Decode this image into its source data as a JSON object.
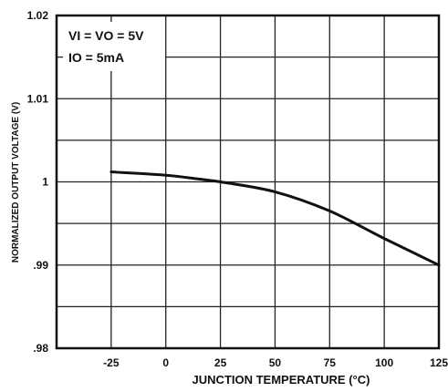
{
  "chart_data": {
    "type": "line",
    "xlabel": "JUNCTION TEMPERATURE (°C)",
    "ylabel": "NORMALIZED OUTPUT VOLTAGE (V)",
    "xlim": [
      -50,
      125
    ],
    "ylim": [
      0.98,
      1.02
    ],
    "x_ticks": [
      -25,
      0,
      25,
      50,
      75,
      100,
      125
    ],
    "x_tick_labels": [
      "-25",
      "0",
      "25",
      "50",
      "75",
      "100",
      "125"
    ],
    "y_ticks": [
      0.98,
      0.99,
      1.0,
      1.01,
      1.02
    ],
    "y_tick_labels": [
      ".98",
      ".99",
      "1",
      "1.01",
      "1.02"
    ],
    "grid": true,
    "annotations": [
      "VI = VO = 5V",
      "IO = 5mA"
    ],
    "series": [
      {
        "x": [
          -25,
          0,
          10,
          25,
          50,
          75,
          100,
          125
        ],
        "y": [
          1.0012,
          1.0008,
          1.0005,
          1.0,
          0.9988,
          0.9965,
          0.9932,
          0.99
        ]
      }
    ]
  }
}
